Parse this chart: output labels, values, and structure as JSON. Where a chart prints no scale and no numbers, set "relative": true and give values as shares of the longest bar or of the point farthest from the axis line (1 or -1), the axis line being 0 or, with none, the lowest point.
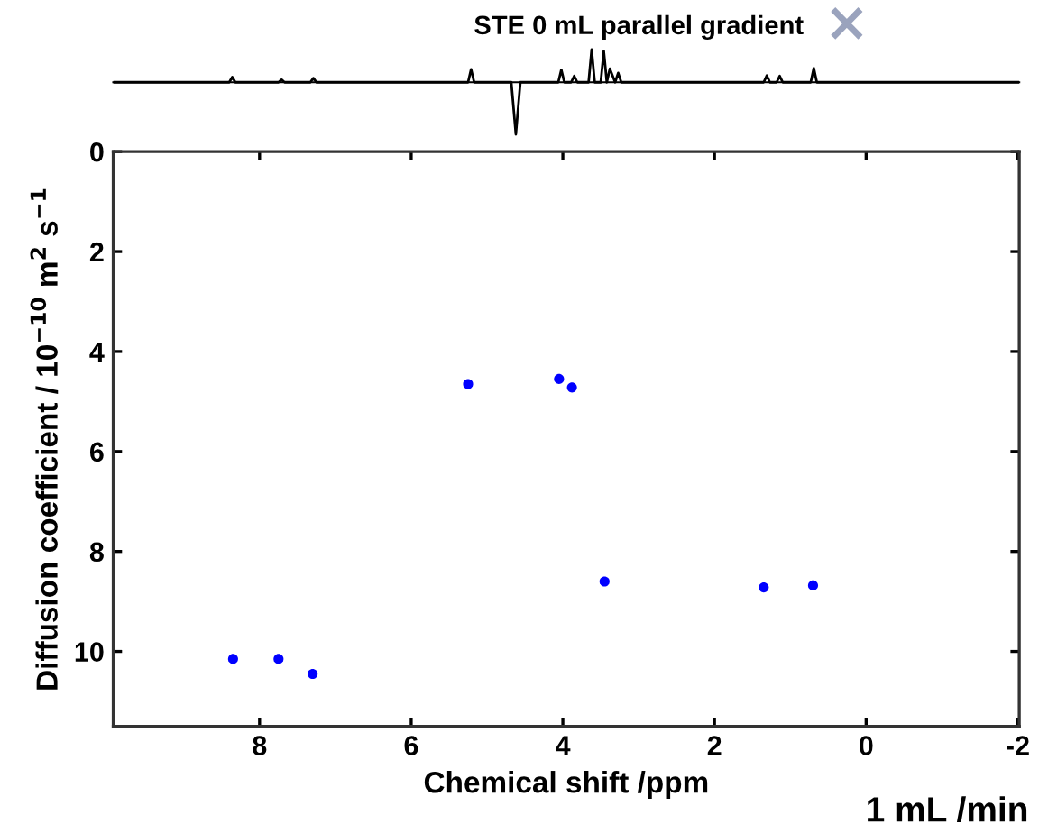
{
  "chart_data": [
    {
      "type": "line",
      "title": "STE 0 mL parallel gradient",
      "relative": true,
      "xlim": [
        9.93,
        -2.02
      ],
      "series": [
        {
          "color": "#000000",
          "x": [
            9.93,
            8.4,
            8.36,
            8.32,
            7.75,
            7.71,
            7.67,
            7.33,
            7.29,
            7.25,
            5.25,
            5.21,
            5.17,
            4.68,
            4.62,
            4.56,
            4.06,
            4.02,
            3.98,
            3.89,
            3.85,
            3.81,
            3.66,
            3.62,
            3.58,
            3.5,
            3.46,
            3.42,
            3.38,
            3.31,
            3.27,
            3.23,
            1.35,
            1.31,
            1.27,
            1.18,
            1.14,
            1.1,
            0.73,
            0.69,
            0.65,
            -2.02
          ],
          "values": [
            0,
            0,
            0.1,
            0,
            0,
            0.05,
            0,
            0,
            0.08,
            0,
            0,
            0.25,
            0,
            0,
            -1,
            0,
            0,
            0.24,
            0,
            0,
            0.12,
            0,
            0,
            0.63,
            0,
            0,
            0.6,
            0,
            0.26,
            0,
            0.18,
            0,
            0,
            0.13,
            0,
            0,
            0.12,
            0,
            0,
            0.27,
            0,
            0
          ]
        }
      ]
    },
    {
      "type": "scatter",
      "xlabel": "Chemical shift /ppm",
      "ylabel": "Diffusion coefficient / 10$^{−10}$ m$^{2}$ s$^{−1}$",
      "xlim": [
        9.93,
        -2.02
      ],
      "ylim": [
        11.5,
        0
      ],
      "xticks": [
        8,
        6,
        4,
        2,
        0,
        -2
      ],
      "yticks": [
        0,
        2,
        4,
        6,
        8,
        10
      ],
      "marker": "circle",
      "annotations": [
        "1 mL /min"
      ],
      "series": [
        {
          "color": "#0000ff",
          "x": [
            8.35,
            7.75,
            7.3,
            5.25,
            4.05,
            3.88,
            3.45,
            1.35,
            0.7
          ],
          "values": [
            10.15,
            10.15,
            10.45,
            4.65,
            4.55,
            4.72,
            8.6,
            8.72,
            8.68
          ]
        }
      ]
    }
  ]
}
